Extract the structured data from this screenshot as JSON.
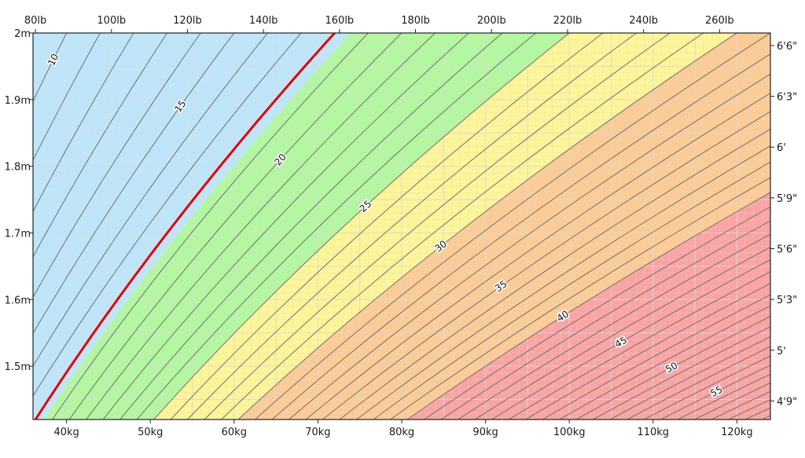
{
  "chart_data": {
    "type": "area",
    "title": "",
    "xlabel": "",
    "ylabel": "",
    "x_unit": "kg",
    "y_unit": "m",
    "xlim": [
      36,
      124
    ],
    "ylim": [
      1.42,
      2.0
    ],
    "grid": true,
    "bottom_ticks": [
      "40kg",
      "50kg",
      "60kg",
      "70kg",
      "80kg",
      "90kg",
      "100kg",
      "110kg",
      "120kg"
    ],
    "bottom_tick_values": [
      40,
      50,
      60,
      70,
      80,
      90,
      100,
      110,
      120
    ],
    "left_ticks": [
      "1.5m",
      "1.6m",
      "1.7m",
      "1.8m",
      "1.9m",
      "2m"
    ],
    "left_tick_values": [
      1.5,
      1.6,
      1.7,
      1.8,
      1.9,
      2.0
    ],
    "top_ticks": [
      "80lb",
      "100lb",
      "120lb",
      "140lb",
      "160lb",
      "180lb",
      "200lb",
      "220lb",
      "240lb",
      "260lb"
    ],
    "top_tick_values_lb": [
      80,
      100,
      120,
      140,
      160,
      180,
      200,
      220,
      240,
      260
    ],
    "right_ticks": [
      "4'9\"",
      "5'",
      "5'3\"",
      "5'6\"",
      "5'9\"",
      "6'",
      "6'3\"",
      "6'6\""
    ],
    "right_tick_values_in": [
      57,
      60,
      63,
      66,
      69,
      72,
      75,
      78
    ],
    "bands": [
      {
        "from": 0,
        "to": 18.5,
        "color": "#bde6fb"
      },
      {
        "from": 18.5,
        "to": 25,
        "color": "#b2f89e"
      },
      {
        "from": 25,
        "to": 30,
        "color": "#fdf697"
      },
      {
        "from": 30,
        "to": 40,
        "color": "#fdcc94"
      },
      {
        "from": 40,
        "to": 80,
        "color": "#fca3a3"
      }
    ],
    "contour_bmi_step": 1,
    "contour_bmi_range": [
      8,
      64
    ],
    "contour_labels": [
      {
        "bmi": 10,
        "text": "10",
        "height": 1.96
      },
      {
        "bmi": 15,
        "text": "15",
        "height": 1.89
      },
      {
        "bmi": 20,
        "text": "20",
        "height": 1.81
      },
      {
        "bmi": 25,
        "text": "25",
        "height": 1.74
      },
      {
        "bmi": 30,
        "text": "30",
        "height": 1.68
      },
      {
        "bmi": 35,
        "text": "35",
        "height": 1.62
      },
      {
        "bmi": 40,
        "text": "40",
        "height": 1.575
      },
      {
        "bmi": 45,
        "text": "45",
        "height": 1.536
      },
      {
        "bmi": 50,
        "text": "50",
        "height": 1.498
      },
      {
        "bmi": 55,
        "text": "55",
        "height": 1.462
      }
    ],
    "highlight_line": {
      "bmi": 18.0,
      "color": "#e00000"
    },
    "colors": {
      "contour": "#707070",
      "grid": "#d8d8d8",
      "axis": "#222222"
    }
  }
}
